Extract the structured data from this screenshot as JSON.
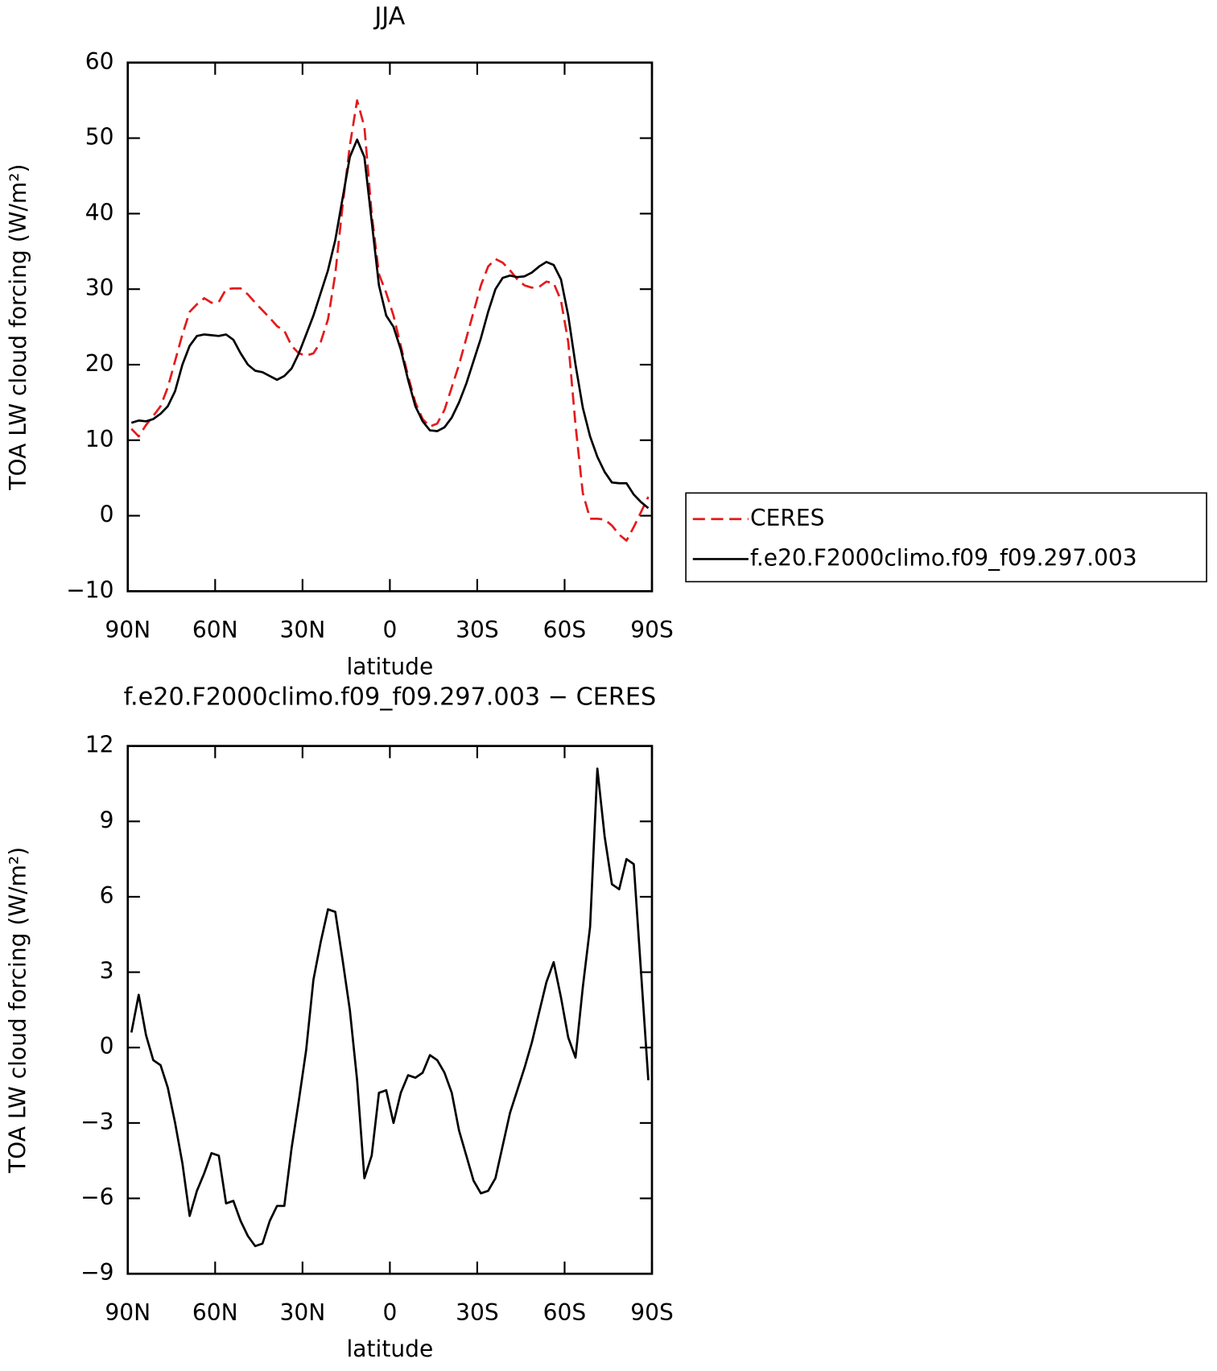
{
  "chart_data": [
    {
      "type": "line",
      "title": "JJA",
      "xlabel": "latitude",
      "ylabel": "TOA LW cloud forcing (W/m²)",
      "x": [
        88.75,
        86.25,
        83.75,
        81.25,
        78.75,
        76.25,
        73.75,
        71.25,
        68.75,
        66.25,
        63.75,
        61.25,
        58.75,
        56.25,
        53.75,
        51.25,
        48.75,
        46.25,
        43.75,
        41.25,
        38.75,
        36.25,
        33.75,
        31.25,
        28.75,
        26.25,
        23.75,
        21.25,
        18.75,
        16.25,
        13.75,
        11.25,
        8.75,
        6.25,
        3.75,
        1.25,
        -1.25,
        -3.75,
        -6.25,
        -8.75,
        -11.25,
        -13.75,
        -16.25,
        -18.75,
        -21.25,
        -23.75,
        -26.25,
        -28.75,
        -31.25,
        -33.75,
        -36.25,
        -38.75,
        -41.25,
        -43.75,
        -46.25,
        -48.75,
        -51.25,
        -53.75,
        -56.25,
        -58.75,
        -61.25,
        -63.75,
        -66.25,
        -68.75,
        -71.25,
        -73.75,
        -76.25,
        -78.75,
        -81.25,
        -83.75,
        -86.25,
        -88.75
      ],
      "series": [
        {
          "name": "CERES",
          "color": "#e41a1c",
          "dash": true,
          "values": [
            11.5,
            10.5,
            12.0,
            13.2,
            14.5,
            17.0,
            20.5,
            24.0,
            27.0,
            28.0,
            28.8,
            28.2,
            28.3,
            30.0,
            30.1,
            30.1,
            29.3,
            28.2,
            27.2,
            26.2,
            25.1,
            24.5,
            22.5,
            21.5,
            21.2,
            21.5,
            23.0,
            26.0,
            32.0,
            41.0,
            49.0,
            55.0,
            51.5,
            40.0,
            32.0,
            29.5,
            26.5,
            22.5,
            18.5,
            15.0,
            12.8,
            11.8,
            12.2,
            14.0,
            17.0,
            20.0,
            23.5,
            27.0,
            30.5,
            33.0,
            34.0,
            33.5,
            32.5,
            31.3,
            30.5,
            30.2,
            30.3,
            31.0,
            30.8,
            28.5,
            23.0,
            12.0,
            3.0,
            -0.4,
            -0.4,
            -0.5,
            -1.3,
            -2.5,
            -3.3,
            -1.5,
            0.5,
            2.5
          ]
        },
        {
          "name": "f.e20.F2000climo.f09_f09.297.003",
          "color": "#000000",
          "dash": false,
          "values": [
            12.3,
            12.6,
            12.5,
            12.8,
            13.5,
            14.5,
            16.5,
            20.0,
            22.5,
            23.8,
            24.0,
            23.9,
            23.8,
            24.0,
            23.3,
            21.5,
            20.0,
            19.2,
            19.0,
            18.5,
            18.0,
            18.5,
            19.5,
            21.5,
            24.0,
            26.5,
            29.5,
            32.5,
            36.5,
            42.0,
            47.5,
            49.8,
            47.5,
            39.0,
            30.5,
            26.5,
            25.0,
            22.0,
            18.0,
            14.5,
            12.5,
            11.3,
            11.2,
            11.7,
            13.0,
            15.0,
            17.5,
            20.5,
            23.5,
            27.0,
            30.0,
            31.5,
            31.8,
            31.6,
            31.7,
            32.2,
            33.0,
            33.6,
            33.2,
            31.3,
            26.5,
            20.0,
            14.3,
            10.5,
            7.8,
            5.8,
            4.4,
            4.3,
            4.3,
            2.8,
            1.8,
            1.0
          ]
        }
      ],
      "xlim": [
        90,
        -90
      ],
      "xticks": [
        {
          "value": 90,
          "label": "90N"
        },
        {
          "value": 60,
          "label": "60N"
        },
        {
          "value": 30,
          "label": "30N"
        },
        0,
        {
          "value": -30,
          "label": "30S"
        },
        {
          "value": -60,
          "label": "60S"
        },
        {
          "value": -90,
          "label": "90S"
        }
      ],
      "ylim": [
        -10,
        60
      ],
      "yticks": [
        {
          "value": -10,
          "label": "−10"
        },
        0,
        10,
        20,
        30,
        40,
        50,
        60
      ],
      "legend": "right"
    },
    {
      "type": "line",
      "title": "f.e20.F2000climo.f09_f09.297.003 − CERES",
      "xlabel": "latitude",
      "ylabel": "TOA LW cloud forcing (W/m²)",
      "x": [
        88.75,
        86.25,
        83.75,
        81.25,
        78.75,
        76.25,
        73.75,
        71.25,
        68.75,
        66.25,
        63.75,
        61.25,
        58.75,
        56.25,
        53.75,
        51.25,
        48.75,
        46.25,
        43.75,
        41.25,
        38.75,
        36.25,
        33.75,
        31.25,
        28.75,
        26.25,
        23.75,
        21.25,
        18.75,
        16.25,
        13.75,
        11.25,
        8.75,
        6.25,
        3.75,
        1.25,
        -1.25,
        -3.75,
        -6.25,
        -8.75,
        -11.25,
        -13.75,
        -16.25,
        -18.75,
        -21.25,
        -23.75,
        -26.25,
        -28.75,
        -31.25,
        -33.75,
        -36.25,
        -38.75,
        -41.25,
        -43.75,
        -46.25,
        -48.75,
        -51.25,
        -53.75,
        -56.25,
        -58.75,
        -61.25,
        -63.75,
        -66.25,
        -68.75,
        -71.25,
        -73.75,
        -76.25,
        -78.75,
        -81.25,
        -83.75,
        -86.25,
        -88.75
      ],
      "series": [
        {
          "color": "#000000",
          "dash": false,
          "values": [
            0.6,
            2.1,
            0.5,
            -0.5,
            -0.7,
            -1.6,
            -3.0,
            -4.6,
            -6.7,
            -5.7,
            -5.0,
            -4.2,
            -4.3,
            -6.2,
            -6.1,
            -6.9,
            -7.5,
            -7.9,
            -7.8,
            -6.9,
            -6.3,
            -6.3,
            -4.0,
            -2.1,
            -0.1,
            2.7,
            4.2,
            5.5,
            5.4,
            3.5,
            1.5,
            -1.3,
            -5.2,
            -4.3,
            -1.8,
            -1.7,
            -3.0,
            -1.8,
            -1.1,
            -1.2,
            -1.0,
            -0.3,
            -0.5,
            -1.0,
            -1.8,
            -3.3,
            -4.3,
            -5.3,
            -5.8,
            -5.7,
            -5.2,
            -3.9,
            -2.6,
            -1.7,
            -0.8,
            0.2,
            1.4,
            2.6,
            3.4,
            2.0,
            0.4,
            -0.4,
            2.4,
            4.8,
            11.1,
            8.4,
            6.5,
            6.3,
            7.5,
            7.3,
            3.0,
            -1.3
          ]
        }
      ],
      "xlim": [
        90,
        -90
      ],
      "xticks": [
        {
          "value": 90,
          "label": "90N"
        },
        {
          "value": 60,
          "label": "60N"
        },
        {
          "value": 30,
          "label": "30N"
        },
        0,
        {
          "value": -30,
          "label": "30S"
        },
        {
          "value": -60,
          "label": "60S"
        },
        {
          "value": -90,
          "label": "90S"
        }
      ],
      "ylim": [
        -9,
        12
      ],
      "yticks": [
        {
          "value": -9,
          "label": "−9"
        },
        {
          "value": -6,
          "label": "−6"
        },
        {
          "value": -3,
          "label": "−3"
        },
        0,
        3,
        6,
        9,
        12
      ]
    }
  ]
}
